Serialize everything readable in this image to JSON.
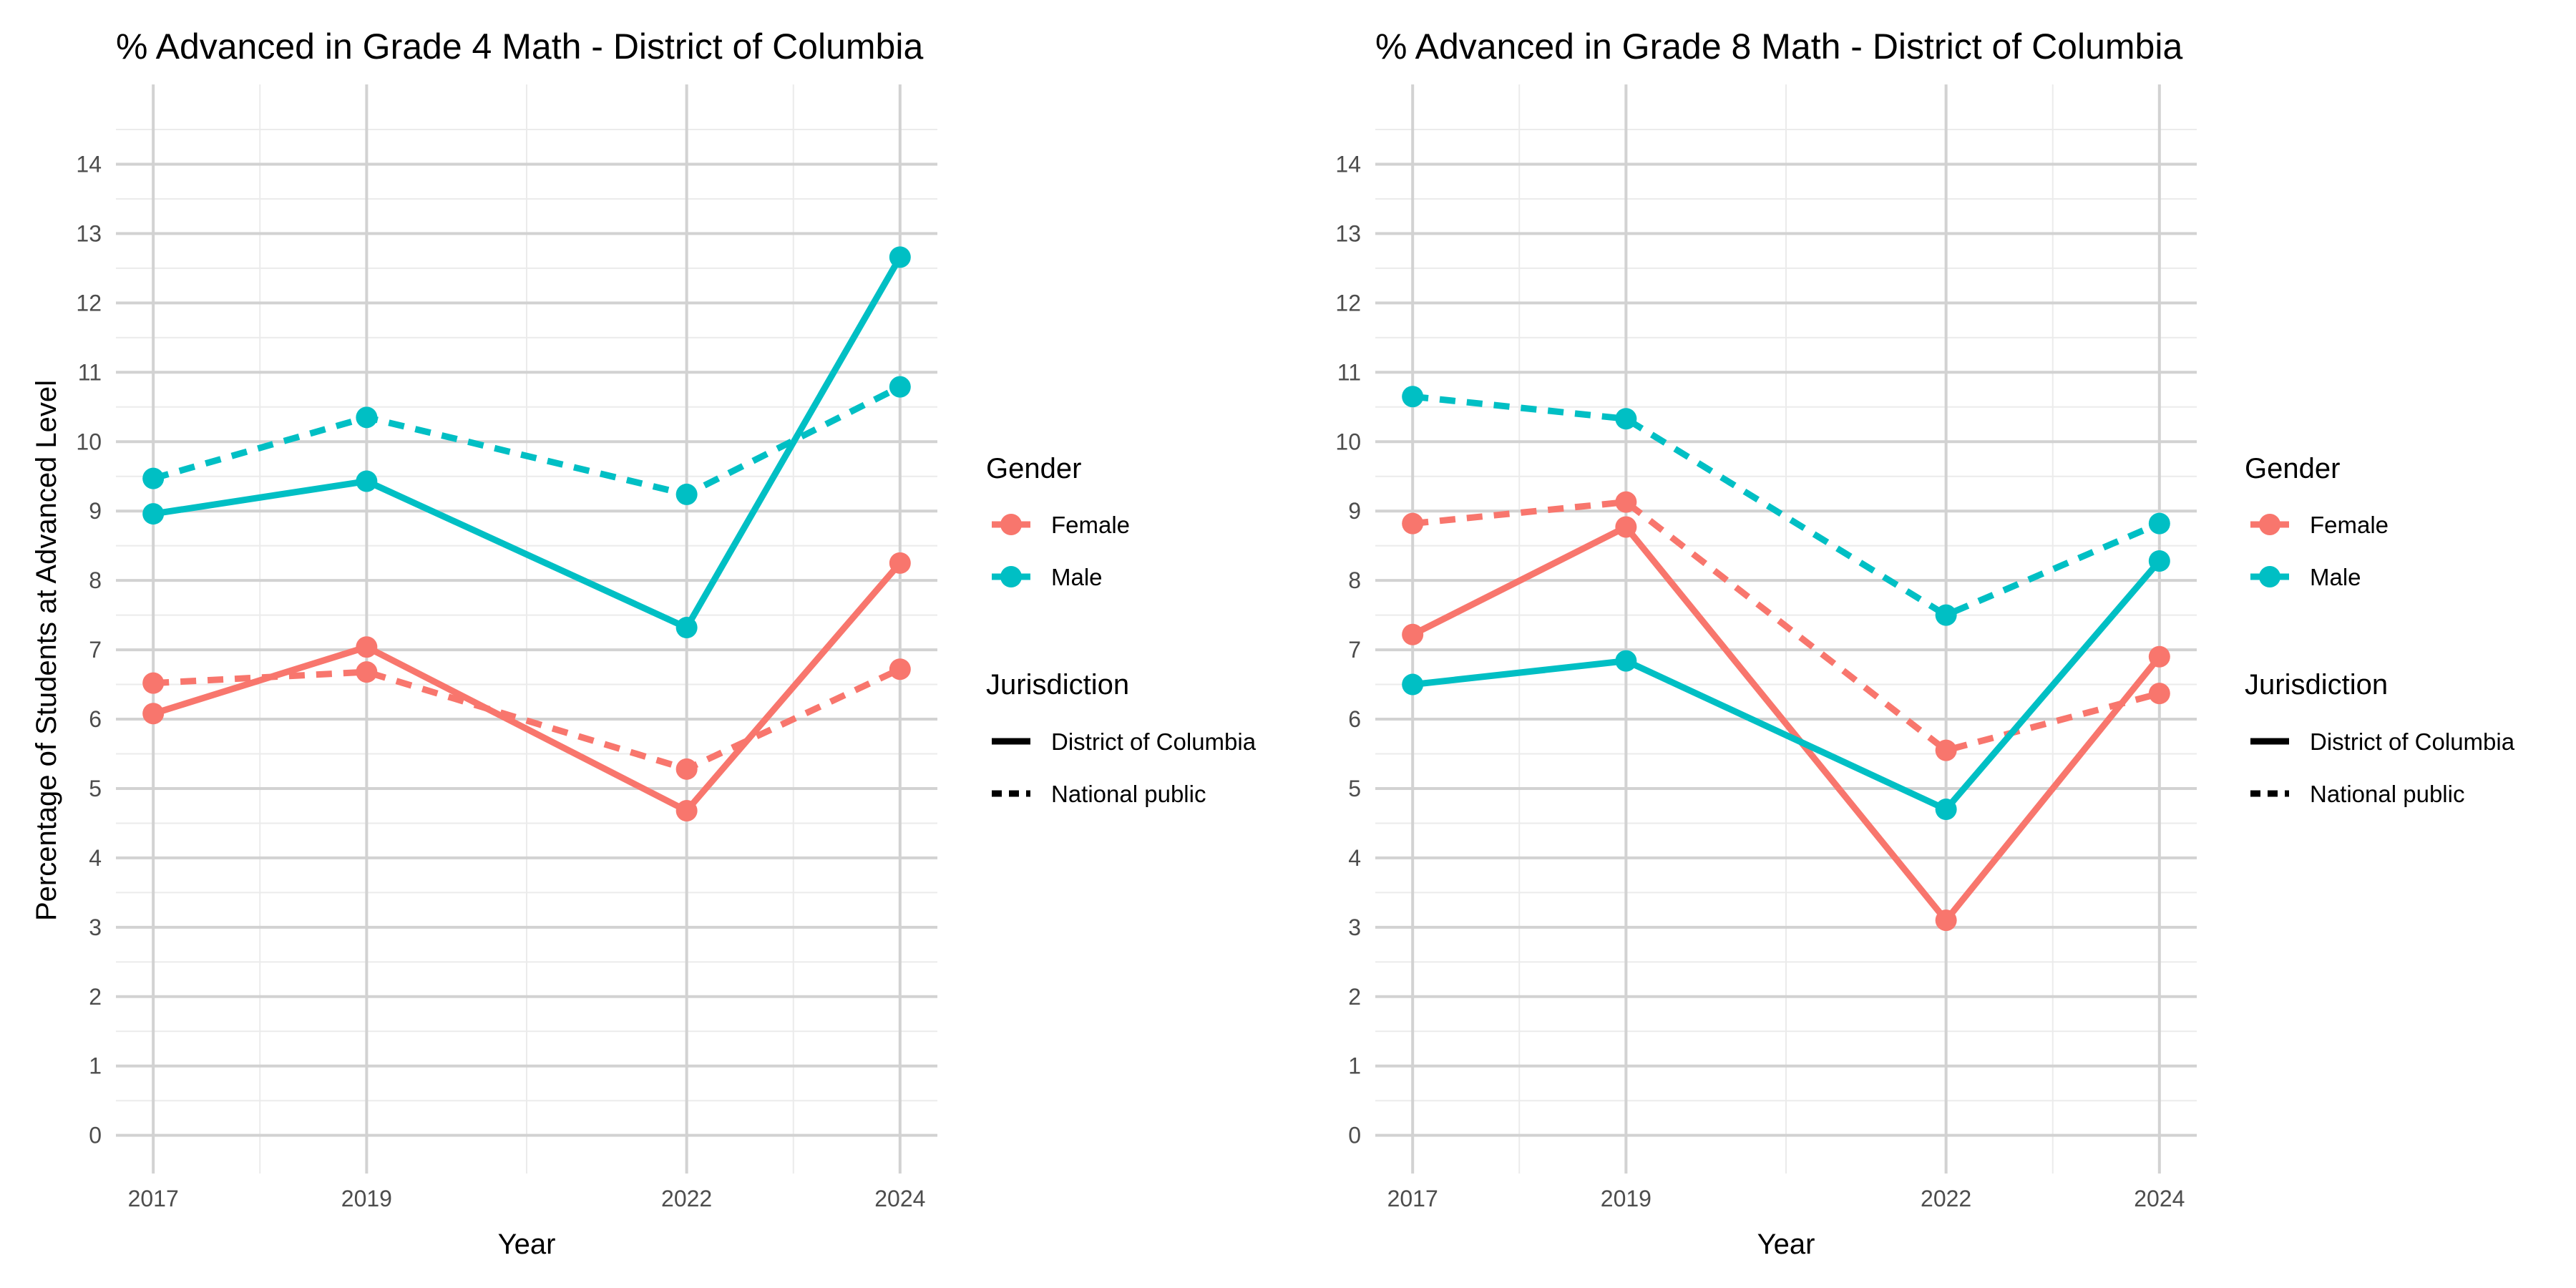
{
  "legend": {
    "gender_title": "Gender",
    "gender_items": [
      {
        "label": "Female",
        "color": "#F8766D"
      },
      {
        "label": "Male",
        "color": "#00BFC4"
      }
    ],
    "jurisdiction_title": "Jurisdiction",
    "jurisdiction_items": [
      {
        "label": "District of Columbia",
        "style": "solid"
      },
      {
        "label": "National public",
        "style": "dashed"
      }
    ]
  },
  "chart_data": [
    {
      "type": "line",
      "title": "% Advanced in Grade 4 Math - District of Columbia",
      "xlabel": "Year",
      "ylabel": "Percentage of Students at Advanced Level",
      "x": [
        2017,
        2019,
        2022,
        2024
      ],
      "xlim": [
        2016.65,
        2024.35
      ],
      "ylim": [
        -0.55,
        15.15
      ],
      "y_ticks": [
        "0",
        "1",
        "2",
        "3",
        "4",
        "5",
        "6",
        "7",
        "8",
        "9",
        "10",
        "11",
        "12",
        "13",
        "14"
      ],
      "x_ticks": [
        "2017",
        "2019",
        "2022",
        "2024"
      ],
      "grid": true,
      "series": [
        {
          "gender": "Female",
          "jurisdiction": "District of Columbia",
          "color": "#F8766D",
          "dash": "solid",
          "values": [
            6.08,
            7.04,
            4.68,
            8.25
          ]
        },
        {
          "gender": "Female",
          "jurisdiction": "National public",
          "color": "#F8766D",
          "dash": "dashed",
          "values": [
            6.52,
            6.68,
            5.28,
            6.72
          ]
        },
        {
          "gender": "Male",
          "jurisdiction": "District of Columbia",
          "color": "#00BFC4",
          "dash": "solid",
          "values": [
            8.96,
            9.43,
            7.32,
            12.66
          ]
        },
        {
          "gender": "Male",
          "jurisdiction": "National public",
          "color": "#00BFC4",
          "dash": "dashed",
          "values": [
            9.47,
            10.35,
            9.24,
            10.79
          ]
        }
      ]
    },
    {
      "type": "line",
      "title": "% Advanced in Grade 8 Math - District of Columbia",
      "xlabel": "Year",
      "ylabel": "",
      "x": [
        2017,
        2019,
        2022,
        2024
      ],
      "xlim": [
        2016.65,
        2024.35
      ],
      "ylim": [
        -0.55,
        15.15
      ],
      "y_ticks": [
        "0",
        "1",
        "2",
        "3",
        "4",
        "5",
        "6",
        "7",
        "8",
        "9",
        "10",
        "11",
        "12",
        "13",
        "14"
      ],
      "x_ticks": [
        "2017",
        "2019",
        "2022",
        "2024"
      ],
      "grid": true,
      "series": [
        {
          "gender": "Female",
          "jurisdiction": "District of Columbia",
          "color": "#F8766D",
          "dash": "solid",
          "values": [
            7.22,
            8.77,
            3.1,
            6.9
          ]
        },
        {
          "gender": "Female",
          "jurisdiction": "National public",
          "color": "#F8766D",
          "dash": "dashed",
          "values": [
            8.82,
            9.13,
            5.55,
            6.37
          ]
        },
        {
          "gender": "Male",
          "jurisdiction": "District of Columbia",
          "color": "#00BFC4",
          "dash": "solid",
          "values": [
            6.5,
            6.84,
            4.7,
            8.28
          ]
        },
        {
          "gender": "Male",
          "jurisdiction": "National public",
          "color": "#00BFC4",
          "dash": "dashed",
          "values": [
            10.65,
            10.33,
            7.5,
            8.82
          ]
        }
      ]
    }
  ]
}
